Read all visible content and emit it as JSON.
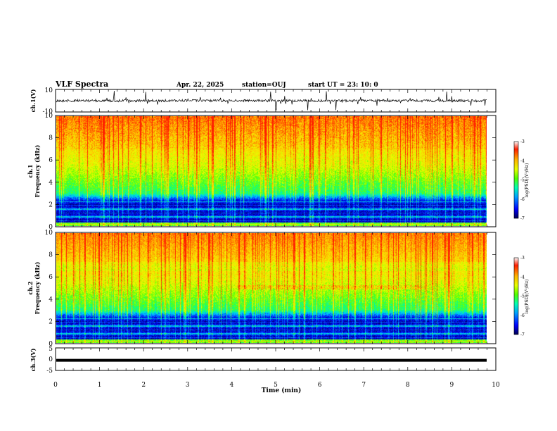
{
  "header": {
    "title": "VLF Spectra",
    "date": "Apr. 22, 2025",
    "station": "station=OUJ",
    "start": "start  UT =   23: 10: 0"
  },
  "chart_data": [
    {
      "type": "line",
      "name": "ch1-waveform",
      "ylabel": "ch.1(V)",
      "ylim": [
        -10,
        10
      ],
      "yticks": [
        "10",
        "-10"
      ],
      "xlim": [
        0,
        10
      ]
    },
    {
      "type": "heatmap",
      "name": "ch1-spectrogram",
      "ylabel_line1": "ch.1",
      "ylabel_line2": "Frequency (kHz)",
      "ylim": [
        0,
        10
      ],
      "yticks": [
        "0",
        "2",
        "4",
        "6",
        "8",
        "10"
      ],
      "xlim": [
        0,
        9.8
      ],
      "colorbar": {
        "label": "log(PSD)(V²/Hz)",
        "ticks": [
          "-3",
          "-4",
          "-5",
          "-6",
          "-7"
        ],
        "range": [
          -7,
          -3
        ]
      }
    },
    {
      "type": "heatmap",
      "name": "ch2-spectrogram",
      "ylabel_line1": "ch.2",
      "ylabel_line2": "Frequency (kHz)",
      "ylim": [
        0,
        10
      ],
      "yticks": [
        "0",
        "2",
        "4",
        "6",
        "8",
        "10"
      ],
      "xlim": [
        0,
        9.8
      ],
      "colorbar": {
        "label": "log(PSD)(V²/Hz)",
        "ticks": [
          "-3",
          "-4",
          "-5",
          "-6",
          "-7"
        ],
        "range": [
          -7,
          -3
        ]
      }
    },
    {
      "type": "line",
      "name": "ch3-waveform",
      "ylabel": "ch.3(V)",
      "ylim": [
        -5,
        5
      ],
      "yticks": [
        "5",
        "0",
        "-5"
      ],
      "xlim": [
        0,
        10
      ],
      "x": [
        0,
        9.8
      ],
      "y": [
        -0.5,
        -0.5
      ]
    }
  ],
  "xaxis": {
    "label": "Time (min)",
    "ticks": [
      "0",
      "1",
      "2",
      "3",
      "4",
      "5",
      "6",
      "7",
      "8",
      "9",
      "10"
    ]
  },
  "colors": {
    "colormap": [
      "#000064",
      "#0000e6",
      "#0050ff",
      "#00c8ff",
      "#00ff96",
      "#64ff00",
      "#e6ff00",
      "#ffd200",
      "#ff7800",
      "#ff1e00",
      "#ffffff"
    ]
  }
}
